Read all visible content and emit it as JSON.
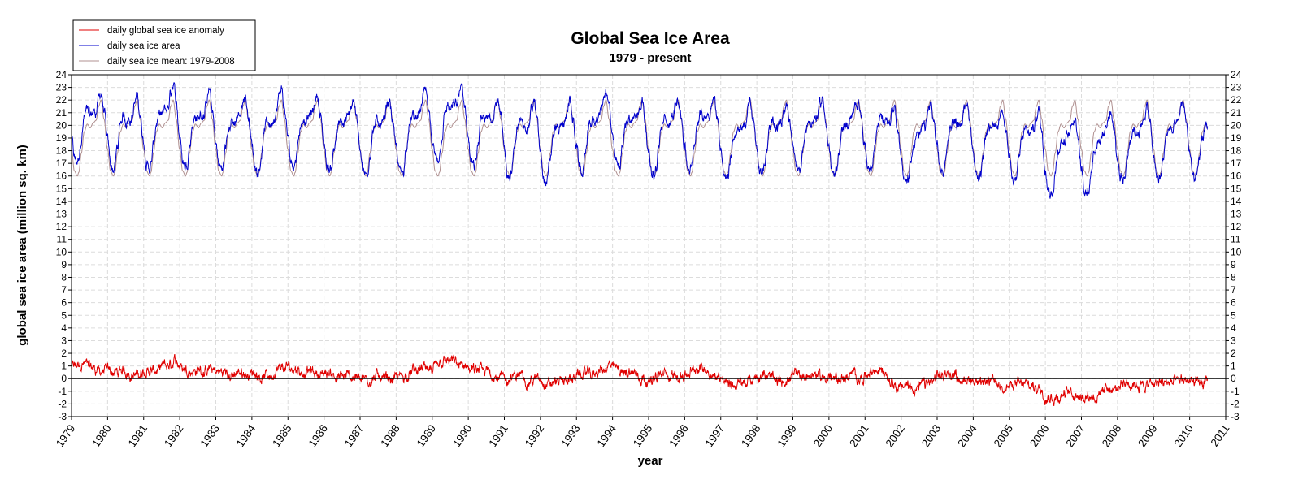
{
  "chart_data": {
    "type": "line",
    "title": "Global Sea Ice Area",
    "subtitle": "1979 - present",
    "xlabel": "year",
    "ylabel": "global sea ice area (million sq. km)",
    "xlim": [
      1979,
      2011
    ],
    "ylim": [
      -3,
      24
    ],
    "x_ticks": [
      "1979",
      "1980",
      "1981",
      "1982",
      "1983",
      "1984",
      "1985",
      "1986",
      "1987",
      "1988",
      "1989",
      "1990",
      "1991",
      "1992",
      "1993",
      "1994",
      "1995",
      "1996",
      "1997",
      "1998",
      "1999",
      "2000",
      "2001",
      "2002",
      "2003",
      "2004",
      "2005",
      "2006",
      "2007",
      "2008",
      "2009",
      "2010",
      "2011"
    ],
    "y_ticks": [
      -3,
      -2,
      -1,
      0,
      1,
      2,
      3,
      4,
      5,
      6,
      7,
      8,
      9,
      10,
      11,
      12,
      13,
      14,
      15,
      16,
      17,
      18,
      19,
      20,
      21,
      22,
      23,
      24
    ],
    "grid": true,
    "legend_position": "top-left",
    "data_end_year": 2010.5,
    "series": [
      {
        "name": "daily global sea ice anomaly",
        "color": "#e00000",
        "annual_mean_anomaly": {
          "x": [
            1979.5,
            1980.5,
            1981.5,
            1982.5,
            1983.5,
            1984.5,
            1985.5,
            1986.5,
            1987.5,
            1988.5,
            1989.5,
            1990.5,
            1991.5,
            1992.5,
            1993.5,
            1994.5,
            1995.5,
            1996.5,
            1997.5,
            1998.5,
            1999.5,
            2000.5,
            2001.5,
            2002.5,
            2003.5,
            2004.5,
            2005.5,
            2006.5,
            2007.5,
            2008.5,
            2009.5,
            2010.3
          ],
          "y": [
            0.9,
            0.4,
            0.5,
            0.8,
            0.4,
            0.3,
            0.4,
            0.2,
            0.3,
            0.5,
            0.7,
            0.0,
            0.1,
            0.2,
            0.5,
            0.7,
            0.3,
            0.6,
            -0.2,
            0.1,
            0.2,
            0.2,
            0.3,
            -0.4,
            0.1,
            -0.2,
            -0.5,
            -1.0,
            -1.0,
            -0.6,
            -0.5,
            -0.4
          ]
        }
      },
      {
        "name": "daily sea ice area",
        "color": "#0000cc"
      },
      {
        "name": "daily sea ice mean: 1979-2008",
        "color": "#b09090",
        "seasonal_cycle": {
          "day_of_year": [
            1,
            30,
            60,
            75,
            100,
            130,
            160,
            190,
            220,
            250,
            275,
            300,
            330,
            365
          ],
          "area": [
            18.1,
            16.4,
            16.0,
            16.3,
            17.8,
            19.5,
            20.1,
            19.8,
            20.2,
            20.4,
            21.5,
            22.0,
            20.5,
            18.1
          ]
        }
      }
    ],
    "zero_line": 0
  }
}
